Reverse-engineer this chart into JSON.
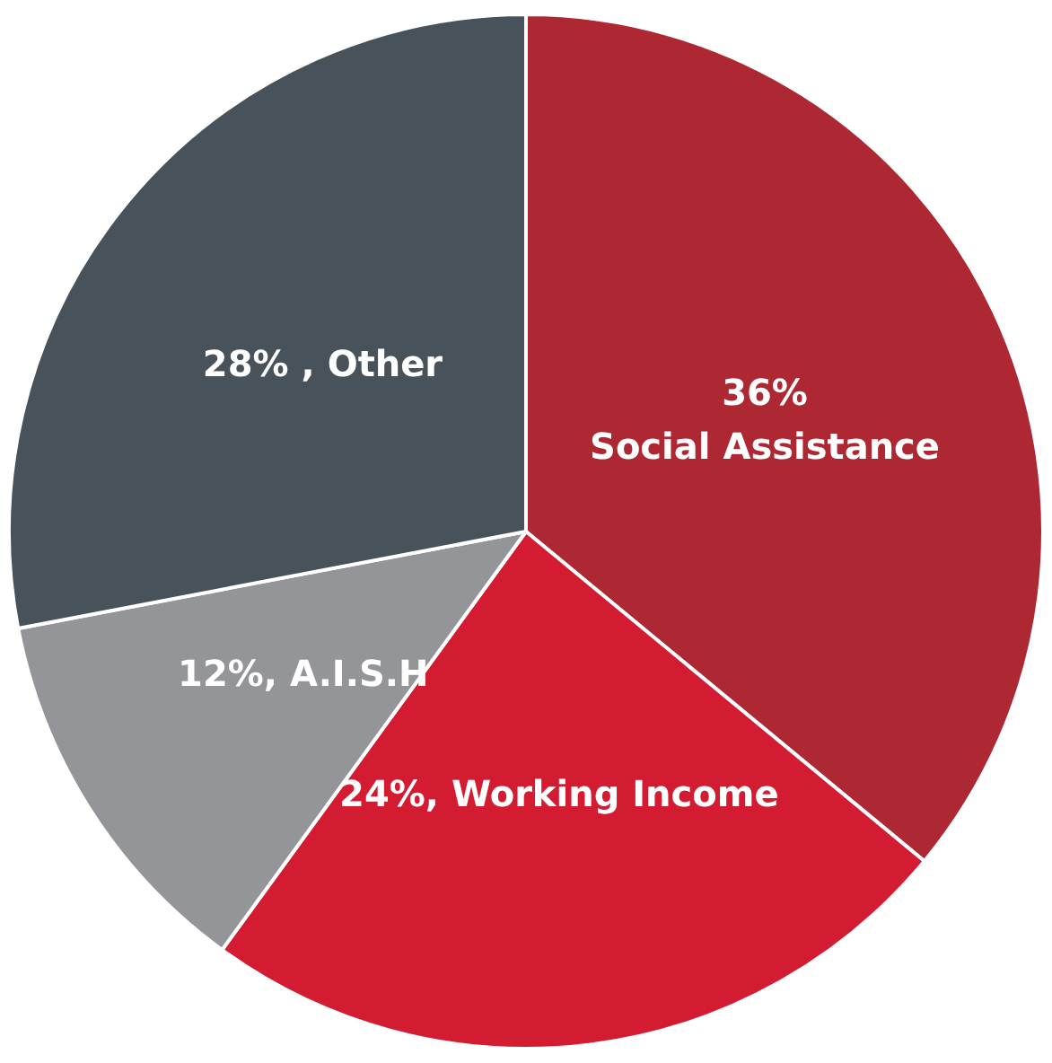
{
  "chart_data": {
    "type": "pie",
    "categories": [
      "Social Assistance",
      "Working Income",
      "A.I.S.H",
      "Other"
    ],
    "values": [
      36,
      24,
      12,
      28
    ],
    "colors": [
      "#ad2832",
      "#d31c31",
      "#939598",
      "#48525a"
    ],
    "value_labels": [
      "36%",
      "24%,",
      "12%,",
      "28% ,"
    ],
    "legend": false
  }
}
